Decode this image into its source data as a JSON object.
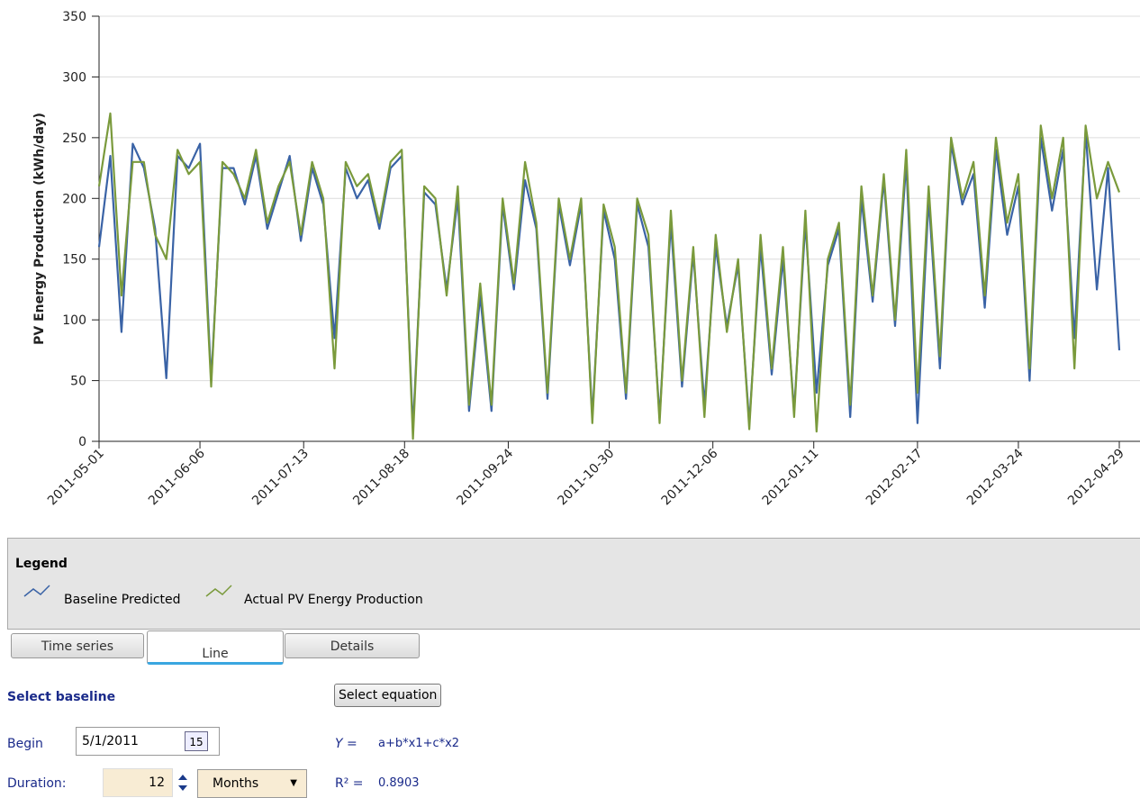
{
  "chart_data": {
    "type": "line",
    "ylabel": "PV Energy Production (kWh/day)",
    "x": [
      "2011-05-01",
      "2011-05-05",
      "2011-05-09",
      "2011-05-13",
      "2011-05-17",
      "2011-05-21",
      "2011-05-25",
      "2011-05-29",
      "2011-06-02",
      "2011-06-06",
      "2011-06-10",
      "2011-06-14",
      "2011-06-18",
      "2011-06-22",
      "2011-06-26",
      "2011-06-30",
      "2011-07-04",
      "2011-07-08",
      "2011-07-12",
      "2011-07-16",
      "2011-07-20",
      "2011-07-24",
      "2011-07-28",
      "2011-08-01",
      "2011-08-05",
      "2011-08-09",
      "2011-08-13",
      "2011-08-17",
      "2011-08-21",
      "2011-08-25",
      "2011-08-29",
      "2011-09-02",
      "2011-09-06",
      "2011-09-10",
      "2011-09-14",
      "2011-09-18",
      "2011-09-22",
      "2011-09-26",
      "2011-09-30",
      "2011-10-04",
      "2011-10-08",
      "2011-10-12",
      "2011-10-16",
      "2011-10-20",
      "2011-10-24",
      "2011-10-28",
      "2011-11-01",
      "2011-11-05",
      "2011-11-09",
      "2011-11-13",
      "2011-11-17",
      "2011-11-21",
      "2011-11-25",
      "2011-11-29",
      "2011-12-03",
      "2011-12-07",
      "2011-12-11",
      "2011-12-15",
      "2011-12-19",
      "2011-12-23",
      "2011-12-27",
      "2011-12-31",
      "2012-01-04",
      "2012-01-08",
      "2012-01-12",
      "2012-01-16",
      "2012-01-20",
      "2012-01-24",
      "2012-01-28",
      "2012-02-01",
      "2012-02-05",
      "2012-02-09",
      "2012-02-13",
      "2012-02-17",
      "2012-02-21",
      "2012-02-25",
      "2012-02-29",
      "2012-03-04",
      "2012-03-08",
      "2012-03-12",
      "2012-03-16",
      "2012-03-20",
      "2012-03-24",
      "2012-03-28",
      "2012-04-01",
      "2012-04-05",
      "2012-04-09",
      "2012-04-13",
      "2012-04-17",
      "2012-04-21",
      "2012-04-25",
      "2012-04-29"
    ],
    "series": [
      {
        "name": "Baseline Predicted",
        "color": "#3a63a6",
        "values": [
          160,
          235,
          90,
          245,
          225,
          175,
          52,
          235,
          225,
          245,
          50,
          225,
          225,
          195,
          235,
          175,
          205,
          235,
          165,
          225,
          195,
          85,
          225,
          200,
          215,
          175,
          225,
          235,
          10,
          205,
          195,
          125,
          200,
          25,
          120,
          25,
          195,
          125,
          215,
          175,
          35,
          195,
          145,
          195,
          20,
          190,
          150,
          35,
          195,
          160,
          20,
          180,
          45,
          155,
          30,
          160,
          95,
          145,
          15,
          160,
          55,
          150,
          25,
          180,
          40,
          145,
          175,
          20,
          200,
          115,
          215,
          95,
          230,
          15,
          200,
          60,
          245,
          195,
          220,
          110,
          240,
          170,
          210,
          50,
          250,
          190,
          240,
          85,
          255,
          125,
          225,
          75
        ]
      },
      {
        "name": "Actual PV Energy Production",
        "color": "#7a9a3c",
        "values": [
          210,
          270,
          120,
          230,
          230,
          170,
          150,
          240,
          220,
          230,
          45,
          230,
          220,
          200,
          240,
          180,
          210,
          230,
          170,
          230,
          200,
          60,
          230,
          210,
          220,
          180,
          230,
          240,
          2,
          210,
          200,
          120,
          210,
          30,
          130,
          30,
          200,
          130,
          230,
          180,
          40,
          200,
          150,
          200,
          15,
          195,
          160,
          40,
          200,
          170,
          15,
          190,
          50,
          160,
          20,
          170,
          90,
          150,
          10,
          170,
          60,
          160,
          20,
          190,
          8,
          150,
          180,
          30,
          210,
          120,
          220,
          100,
          240,
          40,
          210,
          70,
          250,
          200,
          230,
          120,
          250,
          180,
          220,
          60,
          260,
          200,
          250,
          60,
          260,
          200,
          230,
          205
        ]
      }
    ],
    "xlim": [
      "2011-05-01",
      "2012-04-29"
    ],
    "xticks": [
      "2011-05-01",
      "2011-06-06",
      "2011-07-13",
      "2011-08-18",
      "2011-09-24",
      "2011-10-30",
      "2011-12-06",
      "2012-01-11",
      "2012-02-17",
      "2012-03-24",
      "2012-04-29"
    ],
    "ylim": [
      0,
      350
    ],
    "yticks": [
      0,
      50,
      100,
      150,
      200,
      250,
      300,
      350
    ],
    "grid": true
  },
  "legend": {
    "title": "Legend"
  },
  "tabs": [
    "Time series",
    "Line",
    "Details"
  ],
  "form": {
    "section": "Select baseline",
    "begin_label": "Begin",
    "begin_value": "5/1/2011",
    "calendar_day": "15",
    "duration_label": "Duration:",
    "duration_value": "12",
    "unit": "Months",
    "equation_button": "Select equation",
    "y_label": "Y =",
    "equation": "a+b*x1+c*x2",
    "r2_label": "R² =",
    "r2_value": "0.8903"
  }
}
